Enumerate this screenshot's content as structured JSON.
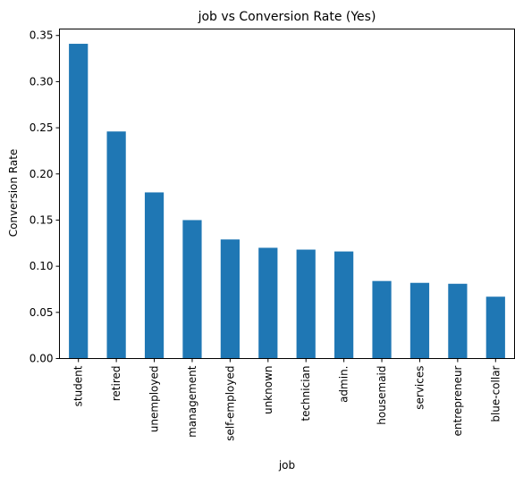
{
  "chart_data": {
    "type": "bar",
    "title": "job vs Conversion Rate (Yes)",
    "xlabel": "job",
    "ylabel": "Conversion Rate",
    "categories": [
      "student",
      "retired",
      "unemployed",
      "management",
      "self-employed",
      "unknown",
      "technician",
      "admin.",
      "housemaid",
      "services",
      "entrepreneur",
      "blue-collar"
    ],
    "values": [
      0.341,
      0.246,
      0.18,
      0.15,
      0.129,
      0.12,
      0.118,
      0.116,
      0.084,
      0.082,
      0.081,
      0.067
    ],
    "ylim": [
      0,
      0.357
    ],
    "yticks": [
      0.0,
      0.05,
      0.1,
      0.15,
      0.2,
      0.25,
      0.3,
      0.35
    ],
    "ytick_labels": [
      "0.00",
      "0.05",
      "0.10",
      "0.15",
      "0.20",
      "0.25",
      "0.30",
      "0.35"
    ],
    "bar_color": "#1f77b4",
    "grid": false,
    "legend": "none"
  }
}
